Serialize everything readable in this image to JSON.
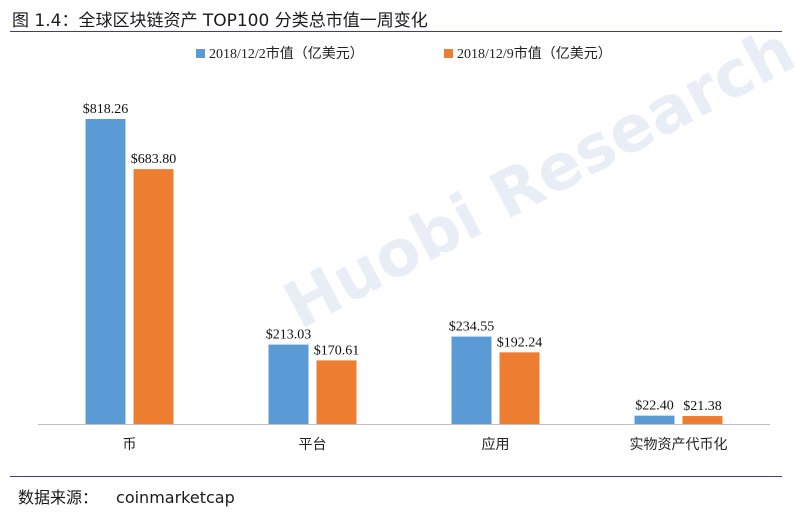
{
  "figure": {
    "title": "图 1.4：全球区块链资产 TOP100 分类总市值一周变化",
    "source_label": "数据来源：",
    "source_value": "coinmarketcap"
  },
  "watermark": "Huobi Research",
  "colors": {
    "series_1": "#5b9bd5",
    "series_2": "#ed7d31",
    "rule": "#3b3b9a",
    "axis": "#bfbfbf"
  },
  "chart_data": {
    "type": "bar",
    "title": "",
    "xlabel": "",
    "ylabel": "",
    "ylim": [
      0,
      900
    ],
    "grid": false,
    "legend_position": "top",
    "categories": [
      "币",
      "平台",
      "应用",
      "实物资产代币化"
    ],
    "series": [
      {
        "name": "2018/12/2市值（亿美元）",
        "values": [
          818.26,
          213.03,
          234.55,
          22.4
        ],
        "labels": [
          "$818.26",
          "$213.03",
          "$234.55",
          "$22.40"
        ]
      },
      {
        "name": "2018/12/9市值（亿美元）",
        "values": [
          683.8,
          170.61,
          192.24,
          21.38
        ],
        "labels": [
          "$683.80",
          "$170.61",
          "$192.24",
          "$21.38"
        ]
      }
    ]
  }
}
